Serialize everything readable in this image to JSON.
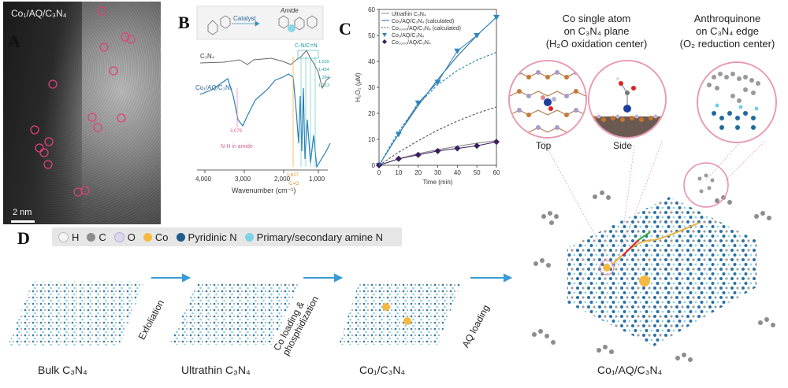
{
  "panelA": {
    "letter": "A",
    "sample": "Co₁/AQ/C₃N₄",
    "scale": "2 nm"
  },
  "panelB": {
    "letter": "B",
    "scheme_catalyst": "Catalyst",
    "scheme_amide": "Amide",
    "trace_top": "C₃N₄",
    "trace_bottom": "Co₁/AQ/C₃N₄",
    "peak_group": "C-N/C=N",
    "peaks": [
      "1,539",
      "1,454",
      "1,394",
      "1,313"
    ],
    "nh_value": "3,076",
    "nh_label": "N-H in amide",
    "co_value": "1,627",
    "co_label": "C=O",
    "xlabel": "Wavenumber (cm⁻¹)",
    "xticks": [
      "4,000",
      "3,000",
      "2,000",
      "1,000"
    ]
  },
  "chart_data": {
    "type": "line",
    "title": "",
    "xlabel": "Time (min)",
    "ylabel": "H₂O₂ (μM)",
    "xlim": [
      0,
      60
    ],
    "ylim": [
      0,
      60
    ],
    "xticks": [
      0,
      10,
      20,
      30,
      40,
      50,
      60
    ],
    "yticks": [
      0,
      10,
      20,
      30,
      40,
      50,
      60
    ],
    "series": [
      {
        "name": "Ultrathin C₃N₄",
        "style": "solid",
        "color": "#8a8a8a",
        "x": [
          0,
          10,
          20,
          30,
          40,
          50,
          60
        ],
        "y": [
          0,
          2.5,
          4.5,
          6,
          7.3,
          8.5,
          9.5
        ]
      },
      {
        "name": "Co₁/AQ/C₃N₄ (calculated)",
        "style": "solid",
        "color": "#2b6a9e",
        "x": [
          0,
          10,
          20,
          30,
          40,
          50,
          60
        ],
        "y": [
          0,
          12,
          23,
          33,
          42,
          50,
          57
        ]
      },
      {
        "name": "Co₁₀₀₀/AQ/C₃N₄ (calculated)",
        "style": "dash",
        "color": "#555555",
        "x": [
          0,
          10,
          20,
          30,
          40,
          50,
          60
        ],
        "y": [
          0,
          5,
          9.5,
          13.5,
          17,
          20,
          22.5
        ]
      },
      {
        "name": "Co₁/AQ/C₃N₄",
        "style": "marker",
        "marker": "triangle-down",
        "color": "#2e86c1",
        "x": [
          0,
          10,
          20,
          30,
          40,
          50,
          60
        ],
        "y": [
          0,
          12,
          24,
          32,
          44,
          50,
          57
        ]
      },
      {
        "name": "Co₁₀₀₀/AQ/C₃N₄",
        "style": "marker",
        "marker": "diamond",
        "color": "#3b1f5e",
        "x": [
          0,
          10,
          20,
          30,
          40,
          50,
          60
        ],
        "y": [
          0,
          2.5,
          4,
          5.5,
          6.5,
          7.5,
          9
        ]
      },
      {
        "name": "",
        "style": "dash",
        "color": "#2e86a6",
        "x": [
          0,
          10,
          20,
          30,
          40,
          50,
          60
        ],
        "y": [
          0,
          13,
          23.5,
          31,
          36.5,
          40.5,
          43.5
        ]
      }
    ]
  },
  "panelC": {
    "letter": "C"
  },
  "right": {
    "co_caption": "Co single atom\non C₃N₄ plane\n(H₂O oxidation center)",
    "aq_caption": "Anthroquinone\non C₃N₄ edge\n(O₂ reduction center)",
    "top_label": "Top",
    "side_label": "Side"
  },
  "panelD": {
    "letter": "D",
    "legend": [
      {
        "symbol": "H",
        "color": "#f4f4f4"
      },
      {
        "symbol": "C",
        "color": "#8c8c8c"
      },
      {
        "symbol": "O",
        "color": "#dcd6ee"
      },
      {
        "symbol": "Co",
        "color": "#f5b942"
      },
      {
        "symbol": "Pyridinic N",
        "color": "#1e5d8c"
      },
      {
        "symbol": "Primary/secondary amine N",
        "color": "#7fd3e6"
      }
    ],
    "stages": [
      "Bulk C₃N₄",
      "Ultrathin C₃N₄",
      "Co₁/C₃N₄",
      "Co₁/AQ/C₃N₄"
    ],
    "steps": [
      "Exfoliation",
      "Co loading &\nphosphidization",
      "AQ loading"
    ]
  }
}
